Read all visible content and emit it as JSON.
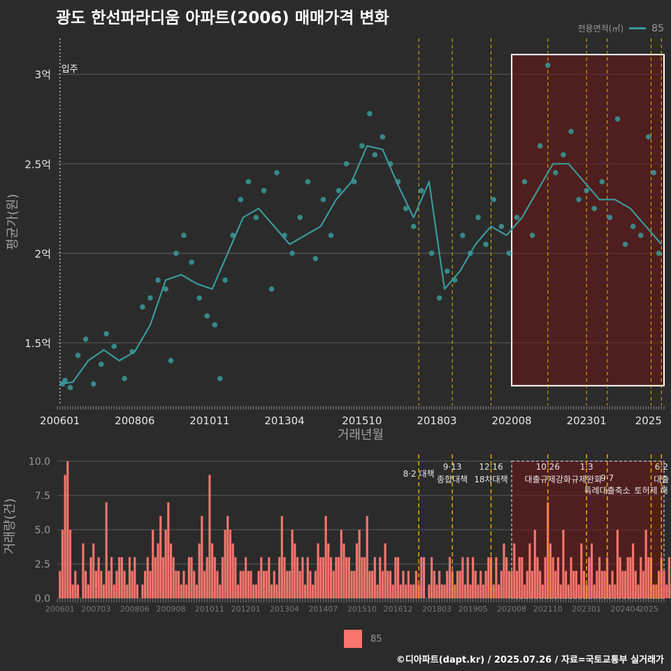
{
  "title": "광도 한선파라디움 아파트(2006) 매매가격 변화",
  "legend_top": {
    "title": "전용면적(㎡)",
    "value": "85",
    "color": "#3a9a9a"
  },
  "legend_bottom": {
    "value": "85",
    "color": "#f8766d"
  },
  "footer": "©디아파트(dapt.kr) / 2025.07.26 / 자료=국토교통부 실거래가",
  "chart_data": [
    {
      "type": "scatter",
      "title": "광도 한선파라디움 아파트(2006) 매매가격 변화",
      "xlabel": "거래년월",
      "ylabel": "평균가(원)",
      "x_ticks": [
        "200601",
        "200806",
        "201011",
        "201304",
        "201510",
        "201803",
        "202008",
        "202301",
        "2025"
      ],
      "y_ticks": [
        {
          "value": 1.5,
          "label": "1.5억"
        },
        {
          "value": 2.0,
          "label": "2억"
        },
        {
          "value": 2.5,
          "label": "2.5억"
        },
        {
          "value": 3.0,
          "label": "3억"
        }
      ],
      "xlim": [
        "2005-12",
        "2025-07"
      ],
      "ylim": [
        1.15,
        3.2
      ],
      "y_unit": "억원",
      "annotation": "입주",
      "move_in_month": "2006-01",
      "policy_lines": [
        "2017-08",
        "2018-09",
        "2019-12",
        "2021-10",
        "2023-01",
        "2023-09",
        "2025-02",
        "2025-06"
      ],
      "highlight": {
        "from": "2020-08",
        "to": "2025-07",
        "ymin": 1.26,
        "ymax": 3.11
      },
      "series": [
        {
          "name": "85",
          "color": "#3a9a9a",
          "line": [
            [
              "2006-01",
              1.27
            ],
            [
              "2006-06",
              1.28
            ],
            [
              "2006-12",
              1.4
            ],
            [
              "2007-06",
              1.46
            ],
            [
              "2007-12",
              1.4
            ],
            [
              "2008-06",
              1.45
            ],
            [
              "2008-12",
              1.6
            ],
            [
              "2009-06",
              1.85
            ],
            [
              "2009-12",
              1.88
            ],
            [
              "2010-06",
              1.83
            ],
            [
              "2010-12",
              1.8
            ],
            [
              "2011-06",
              2.0
            ],
            [
              "2011-12",
              2.2
            ],
            [
              "2012-06",
              2.25
            ],
            [
              "2012-12",
              2.15
            ],
            [
              "2013-06",
              2.05
            ],
            [
              "2013-12",
              2.1
            ],
            [
              "2014-06",
              2.15
            ],
            [
              "2014-12",
              2.3
            ],
            [
              "2015-06",
              2.4
            ],
            [
              "2015-12",
              2.6
            ],
            [
              "2016-06",
              2.58
            ],
            [
              "2016-12",
              2.38
            ],
            [
              "2017-06",
              2.2
            ],
            [
              "2017-12",
              2.4
            ],
            [
              "2018-06",
              1.8
            ],
            [
              "2018-12",
              1.9
            ],
            [
              "2019-06",
              2.05
            ],
            [
              "2019-12",
              2.15
            ],
            [
              "2020-06",
              2.1
            ],
            [
              "2020-12",
              2.2
            ],
            [
              "2021-06",
              2.35
            ],
            [
              "2021-12",
              2.5
            ],
            [
              "2022-06",
              2.5
            ],
            [
              "2022-12",
              2.4
            ],
            [
              "2023-06",
              2.3
            ],
            [
              "2023-12",
              2.3
            ],
            [
              "2024-06",
              2.25
            ],
            [
              "2024-12",
              2.15
            ],
            [
              "2025-06",
              2.05
            ]
          ],
          "points": [
            [
              "2006-02",
              1.27
            ],
            [
              "2006-03",
              1.29
            ],
            [
              "2006-05",
              1.25
            ],
            [
              "2006-08",
              1.43
            ],
            [
              "2006-11",
              1.52
            ],
            [
              "2007-02",
              1.27
            ],
            [
              "2007-05",
              1.38
            ],
            [
              "2007-07",
              1.55
            ],
            [
              "2007-10",
              1.48
            ],
            [
              "2008-02",
              1.3
            ],
            [
              "2008-05",
              1.45
            ],
            [
              "2008-09",
              1.7
            ],
            [
              "2008-12",
              1.75
            ],
            [
              "2009-03",
              1.85
            ],
            [
              "2009-06",
              1.8
            ],
            [
              "2009-08",
              1.4
            ],
            [
              "2009-10",
              2.0
            ],
            [
              "2010-01",
              2.1
            ],
            [
              "2010-04",
              1.95
            ],
            [
              "2010-07",
              1.75
            ],
            [
              "2010-10",
              1.65
            ],
            [
              "2011-01",
              1.6
            ],
            [
              "2011-03",
              1.3
            ],
            [
              "2011-05",
              1.85
            ],
            [
              "2011-08",
              2.1
            ],
            [
              "2011-11",
              2.3
            ],
            [
              "2012-02",
              2.4
            ],
            [
              "2012-05",
              2.2
            ],
            [
              "2012-08",
              2.35
            ],
            [
              "2012-11",
              1.8
            ],
            [
              "2013-01",
              2.45
            ],
            [
              "2013-04",
              2.1
            ],
            [
              "2013-07",
              2.0
            ],
            [
              "2013-10",
              2.2
            ],
            [
              "2014-01",
              2.4
            ],
            [
              "2014-04",
              1.97
            ],
            [
              "2014-07",
              2.3
            ],
            [
              "2014-10",
              2.1
            ],
            [
              "2015-01",
              2.35
            ],
            [
              "2015-04",
              2.5
            ],
            [
              "2015-07",
              2.4
            ],
            [
              "2015-10",
              2.6
            ],
            [
              "2016-01",
              2.78
            ],
            [
              "2016-03",
              2.55
            ],
            [
              "2016-06",
              2.65
            ],
            [
              "2016-09",
              2.5
            ],
            [
              "2016-12",
              2.4
            ],
            [
              "2017-03",
              2.25
            ],
            [
              "2017-06",
              2.15
            ],
            [
              "2017-09",
              2.35
            ],
            [
              "2018-01",
              2.0
            ],
            [
              "2018-04",
              1.75
            ],
            [
              "2018-07",
              1.9
            ],
            [
              "2018-10",
              1.85
            ],
            [
              "2019-01",
              2.1
            ],
            [
              "2019-04",
              2.0
            ],
            [
              "2019-07",
              2.2
            ],
            [
              "2019-10",
              2.05
            ],
            [
              "2020-01",
              2.3
            ],
            [
              "2020-04",
              2.15
            ],
            [
              "2020-07",
              2.0
            ],
            [
              "2020-10",
              2.2
            ],
            [
              "2021-01",
              2.4
            ],
            [
              "2021-04",
              2.1
            ],
            [
              "2021-07",
              2.6
            ],
            [
              "2021-10",
              3.05
            ],
            [
              "2022-01",
              2.45
            ],
            [
              "2022-04",
              2.55
            ],
            [
              "2022-07",
              2.68
            ],
            [
              "2022-10",
              2.3
            ],
            [
              "2023-01",
              2.35
            ],
            [
              "2023-04",
              2.25
            ],
            [
              "2023-07",
              2.4
            ],
            [
              "2023-10",
              2.2
            ],
            [
              "2024-01",
              2.75
            ],
            [
              "2024-04",
              2.05
            ],
            [
              "2024-07",
              2.15
            ],
            [
              "2024-10",
              2.1
            ],
            [
              "2025-01",
              2.65
            ],
            [
              "2025-03",
              2.45
            ],
            [
              "2025-05",
              2.0
            ]
          ]
        }
      ]
    },
    {
      "type": "bar",
      "xlabel": "",
      "ylabel": "거래량(건)",
      "x_ticks": [
        "200601",
        "200703",
        "200806",
        "200908",
        "201011",
        "201201",
        "201304",
        "201407",
        "201510",
        "201612",
        "201803",
        "201905",
        "202008",
        "202110",
        "202301",
        "202404",
        "2025"
      ],
      "y_ticks": [
        "0.0",
        "2.5",
        "5.0",
        "7.5",
        "10.0"
      ],
      "ylim": [
        0,
        10.5
      ],
      "policy_labels": [
        {
          "date": "2017-08",
          "label": "8·2 대책"
        },
        {
          "date": "2018-09",
          "label": "9·13"
        },
        {
          "date": "2018-09",
          "label": "종합대책"
        },
        {
          "date": "2019-12",
          "label": "12·16"
        },
        {
          "date": "2019-12",
          "label": "18차대책"
        },
        {
          "date": "2021-10",
          "label": "10·26"
        },
        {
          "date": "2021-10",
          "label": "대출규제강화"
        },
        {
          "date": "2023-01",
          "label": "1·3"
        },
        {
          "date": "2023-01",
          "label": "규제완화"
        },
        {
          "date": "2023-09",
          "label": "9·7"
        },
        {
          "date": "2023-09",
          "label": "특례대출축소"
        },
        {
          "date": "2025-02",
          "label": "토허제 해"
        },
        {
          "date": "2025-06",
          "label": "6·2"
        },
        {
          "date": "2025-06",
          "label": "대출"
        }
      ],
      "series": [
        {
          "name": "85",
          "color": "#f8766d",
          "start": "2006-01",
          "values": [
            2,
            5,
            9,
            10,
            5,
            1,
            2,
            1,
            0,
            4,
            2,
            1,
            3,
            4,
            2,
            3,
            2,
            1,
            7,
            2,
            3,
            1,
            2,
            3,
            3,
            2,
            1,
            3,
            2,
            3,
            1,
            0,
            1,
            2,
            3,
            2,
            5,
            3,
            4,
            6,
            3,
            5,
            7,
            4,
            3,
            2,
            2,
            1,
            2,
            1,
            3,
            3,
            2,
            1,
            4,
            6,
            2,
            3,
            9,
            4,
            3,
            2,
            1,
            3,
            5,
            6,
            5,
            4,
            3,
            1,
            2,
            2,
            3,
            2,
            2,
            1,
            1,
            2,
            3,
            2,
            2,
            3,
            1,
            2,
            1,
            3,
            6,
            3,
            2,
            2,
            5,
            4,
            3,
            2,
            3,
            1,
            3,
            2,
            1,
            2,
            4,
            3,
            3,
            6,
            4,
            3,
            2,
            3,
            3,
            5,
            4,
            3,
            3,
            2,
            2,
            4,
            5,
            3,
            3,
            6,
            2,
            2,
            3,
            1,
            3,
            2,
            4,
            2,
            2,
            1,
            3,
            3,
            1,
            2,
            1,
            2,
            1,
            1,
            2,
            1,
            3,
            3,
            0,
            1,
            3,
            2,
            1,
            2,
            1,
            1,
            2,
            3,
            2,
            1,
            2,
            2,
            3,
            1,
            3,
            1,
            3,
            2,
            1,
            2,
            1,
            2,
            3,
            3,
            1,
            3,
            1,
            2,
            4,
            3,
            2,
            2,
            4,
            2,
            3,
            3,
            1,
            2,
            4,
            2,
            5,
            3,
            2,
            1,
            3,
            7,
            4,
            3,
            2,
            3,
            1,
            5,
            2,
            1,
            3,
            2,
            2,
            1,
            4,
            2,
            1,
            3,
            4,
            1,
            2,
            3,
            2,
            2,
            3,
            1,
            2,
            1,
            5,
            3,
            2,
            2,
            3,
            3,
            4,
            2,
            1,
            3,
            2,
            5,
            3,
            3,
            1,
            1,
            2,
            3,
            2,
            1,
            3,
            1,
            3,
            2,
            1,
            2,
            3,
            4,
            1,
            3,
            1,
            1
          ]
        }
      ]
    }
  ]
}
